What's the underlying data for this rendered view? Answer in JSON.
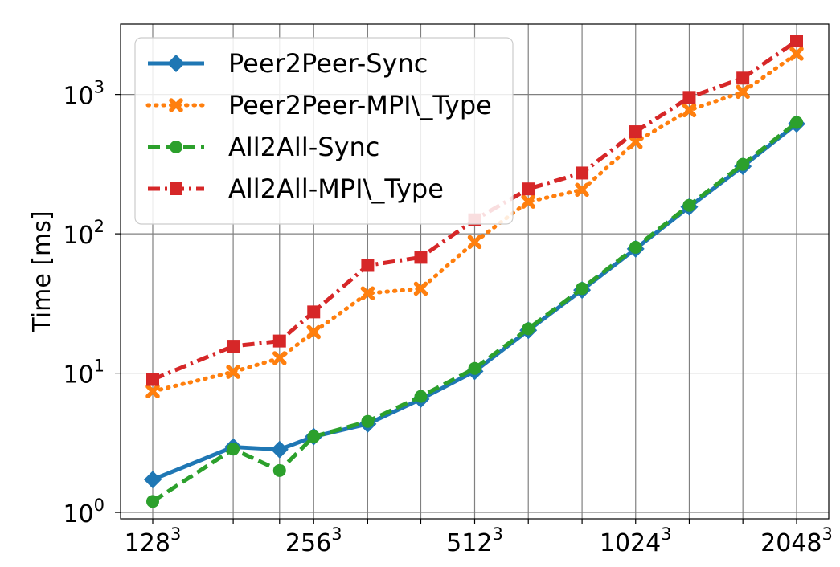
{
  "chart_data": {
    "type": "line",
    "title": "",
    "xlabel": "",
    "ylabel": "Time [ms]",
    "y_scale": "log",
    "ylim": [
      0.9,
      3200
    ],
    "x_scale": "log2",
    "x_tick_labels": [
      {
        "base": "128",
        "exp": "3",
        "x": 128
      },
      {
        "base": "256",
        "exp": "3",
        "x": 256
      },
      {
        "base": "512",
        "exp": "3",
        "x": 512
      },
      {
        "base": "1024",
        "exp": "3",
        "x": 1024
      },
      {
        "base": "2048",
        "exp": "3",
        "x": 2048
      }
    ],
    "y_tick_labels": [
      {
        "base": "10",
        "exp": "0",
        "y": 1
      },
      {
        "base": "10",
        "exp": "1",
        "y": 10
      },
      {
        "base": "10",
        "exp": "2",
        "y": 100
      },
      {
        "base": "10",
        "exp": "3",
        "y": 1000
      }
    ],
    "grid": true,
    "legend_position": "top-left",
    "x": [
      128,
      181,
      221,
      256,
      323,
      406,
      512,
      645,
      813,
      1024,
      1290,
      1625,
      2048
    ],
    "series": [
      {
        "name": "Peer2Peer-Sync",
        "color": "#1f77b4",
        "line_style": "solid",
        "marker": "diamond",
        "values": [
          1.72,
          2.95,
          2.83,
          3.5,
          4.32,
          6.5,
          10.3,
          20.3,
          39.5,
          78,
          156,
          305,
          615
        ]
      },
      {
        "name": "Peer2Peer-MPI\\_Type",
        "color": "#ff7f0e",
        "line_style": "dotted",
        "marker": "x",
        "values": [
          7.4,
          10.2,
          12.8,
          19.7,
          37.4,
          40.4,
          87.3,
          170,
          207,
          456,
          770,
          1045,
          1960
        ]
      },
      {
        "name": "All2All-Sync",
        "color": "#2ca02c",
        "line_style": "dashed",
        "marker": "circle",
        "values": [
          1.2,
          2.85,
          2.0,
          3.5,
          4.5,
          6.8,
          10.8,
          20.8,
          40.5,
          80,
          160,
          315,
          630
        ]
      },
      {
        "name": "All2All-MPI\\_Type",
        "color": "#d62728",
        "line_style": "dashdot",
        "marker": "square",
        "values": [
          9.0,
          15.6,
          17.0,
          27.5,
          59.3,
          67.8,
          126,
          210,
          273,
          540,
          952,
          1310,
          2420
        ]
      }
    ]
  }
}
